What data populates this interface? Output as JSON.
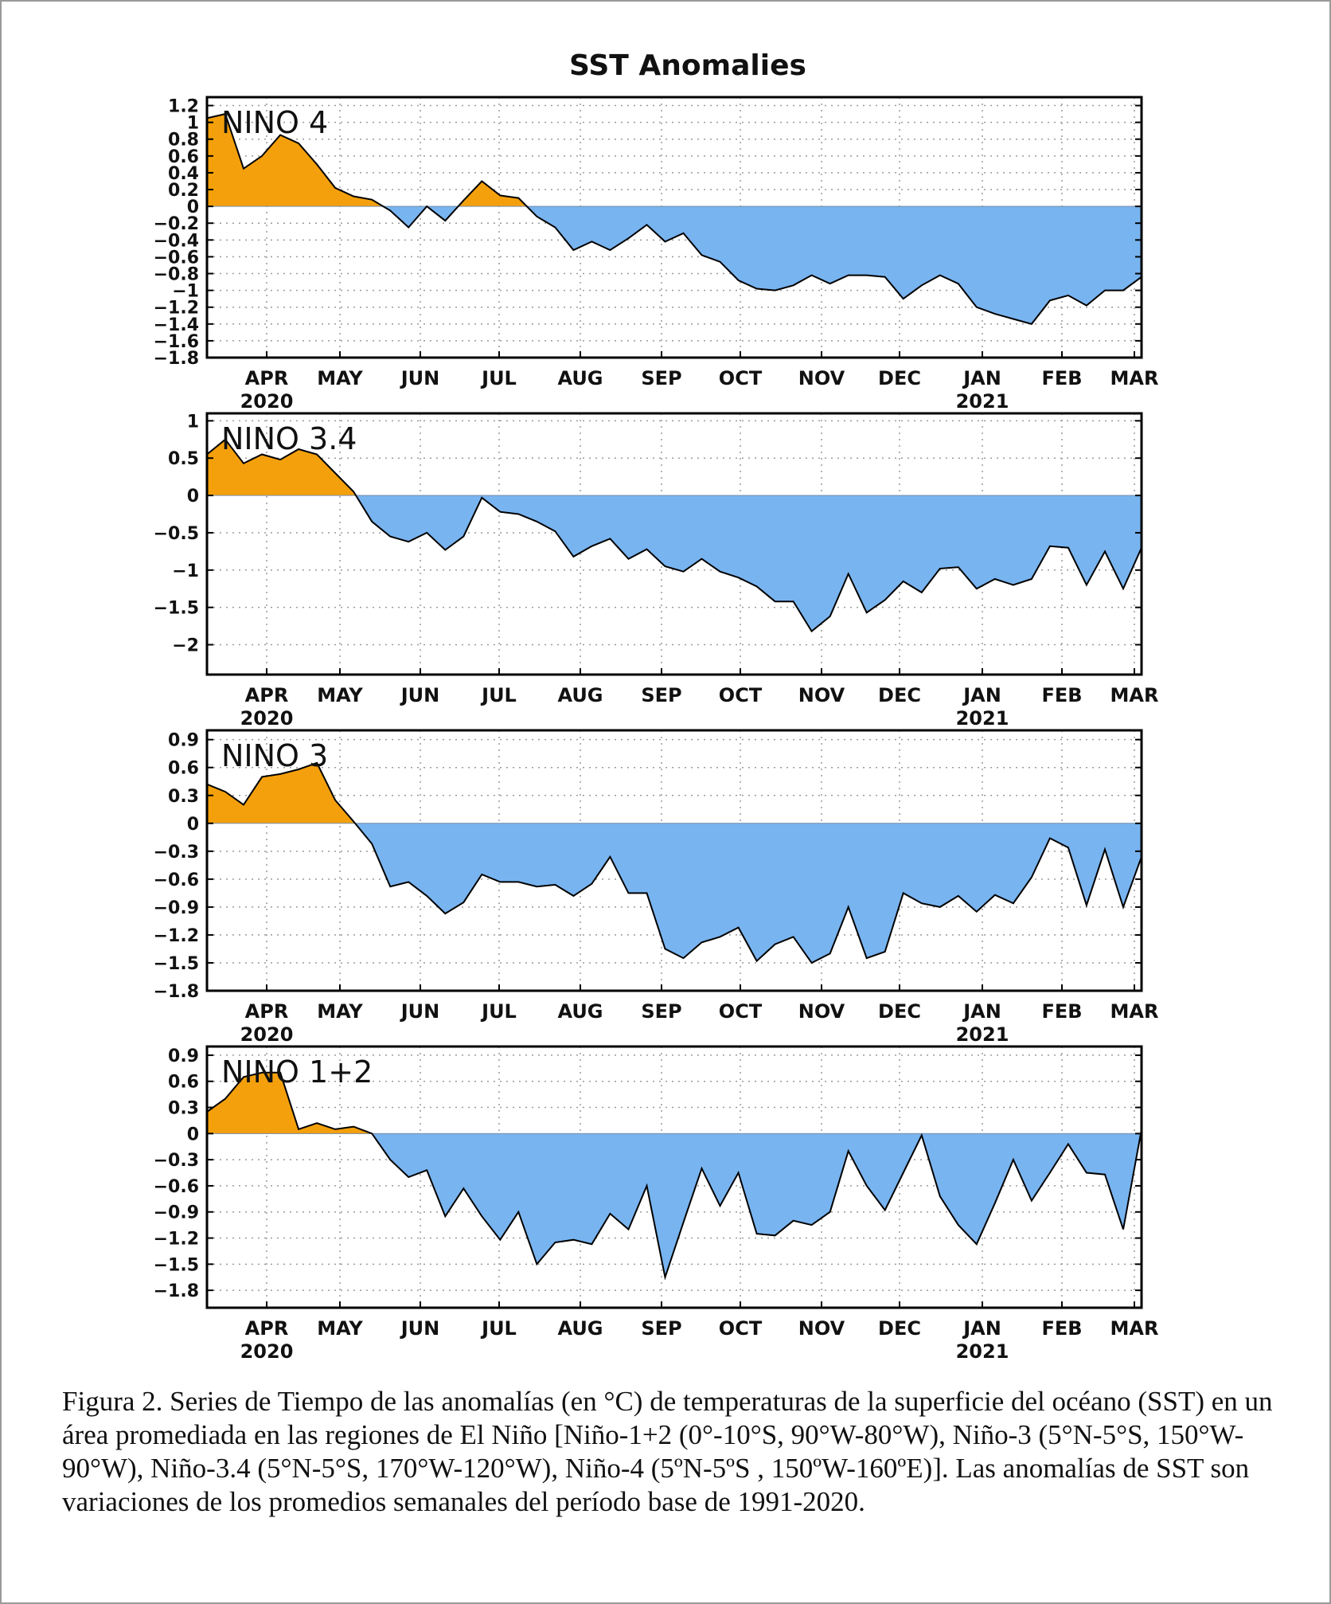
{
  "title": "SST Anomalies",
  "caption": "Figura 2. Series de Tiempo de las anomalías (en °C) de temperaturas de la superficie del océano (SST) en un área promediada en las regiones de El Niño [Niño-1+2 (0°-10°S, 90°W-80°W), Niño-3 (5°N-5°S, 150°W-90°W), Niño-3.4 (5°N-5°S, 170°W-120°W), Niño-4 (5ºN-5ºS , 150ºW-160ºE)]. Las anomalías de SST son variaciones de los promedios semanales del período base de 1991-2020.",
  "colors": {
    "positive": "#f4a00c",
    "negative": "#78b4f0",
    "line": "#000000"
  },
  "x_ticks": [
    "APR",
    "MAY",
    "JUN",
    "JUL",
    "AUG",
    "SEP",
    "OCT",
    "NOV",
    "DEC",
    "JAN",
    "FEB",
    "MAR"
  ],
  "year_labels": [
    {
      "tick": "APR",
      "label": "2020"
    },
    {
      "tick": "JAN",
      "label": "2021"
    }
  ],
  "chart_data": [
    {
      "type": "area",
      "region": "NINO 4",
      "x_range": [
        "2020-03-04",
        "2021-03-03"
      ],
      "x_unit": "week",
      "ylim": [
        -1.8,
        1.3
      ],
      "yticks": [
        -1.8,
        -1.6,
        -1.4,
        -1.2,
        -1,
        -0.8,
        -0.6,
        -0.4,
        -0.2,
        0,
        0.2,
        0.4,
        0.6,
        0.8,
        1,
        1.2
      ],
      "ytick_labels": [
        "−1.8",
        "−1.6",
        "−1.4",
        "−1.2",
        "−1",
        "−0.8",
        "−0.6",
        "−0.4",
        "−0.2",
        "0",
        "0.2",
        "0.4",
        "0.6",
        "0.8",
        "1",
        "1.2"
      ],
      "grid": true,
      "values": [
        1.05,
        1.1,
        0.45,
        0.6,
        0.85,
        0.75,
        0.5,
        0.22,
        0.12,
        0.08,
        -0.05,
        -0.25,
        0.0,
        -0.17,
        0.07,
        0.3,
        0.13,
        0.1,
        -0.12,
        -0.25,
        -0.52,
        -0.42,
        -0.52,
        -0.38,
        -0.22,
        -0.42,
        -0.32,
        -0.58,
        -0.66,
        -0.88,
        -0.98,
        -1.0,
        -0.94,
        -0.82,
        -0.92,
        -0.82,
        -0.82,
        -0.84,
        -1.1,
        -0.94,
        -0.82,
        -0.92,
        -1.2,
        -1.28,
        -1.34,
        -1.4,
        -1.12,
        -1.06,
        -1.18,
        -1.0,
        -1.0,
        -0.84
      ]
    },
    {
      "type": "area",
      "region": "NINO 3.4",
      "x_range": [
        "2020-03-04",
        "2021-03-03"
      ],
      "x_unit": "week",
      "ylim": [
        -2.4,
        1.1
      ],
      "yticks": [
        -2,
        -1.5,
        -1,
        -0.5,
        0,
        0.5,
        1
      ],
      "ytick_labels": [
        "−2",
        "−1.5",
        "−1",
        "−0.5",
        "0",
        "0.5",
        "1"
      ],
      "grid": true,
      "values": [
        0.55,
        0.75,
        0.43,
        0.55,
        0.48,
        0.62,
        0.55,
        0.3,
        0.05,
        -0.35,
        -0.55,
        -0.62,
        -0.5,
        -0.73,
        -0.55,
        -0.03,
        -0.22,
        -0.25,
        -0.35,
        -0.48,
        -0.82,
        -0.68,
        -0.58,
        -0.85,
        -0.72,
        -0.95,
        -1.02,
        -0.85,
        -1.02,
        -1.1,
        -1.22,
        -1.42,
        -1.42,
        -1.82,
        -1.62,
        -1.05,
        -1.57,
        -1.4,
        -1.15,
        -1.3,
        -0.98,
        -0.96,
        -1.25,
        -1.12,
        -1.2,
        -1.12,
        -0.68,
        -0.7,
        -1.2,
        -0.75,
        -1.25,
        -0.7
      ]
    },
    {
      "type": "area",
      "region": "NINO 3",
      "x_range": [
        "2020-03-04",
        "2021-03-03"
      ],
      "x_unit": "week",
      "ylim": [
        -1.8,
        1.0
      ],
      "yticks": [
        -1.8,
        -1.5,
        -1.2,
        -0.9,
        -0.6,
        -0.3,
        0,
        0.3,
        0.6,
        0.9
      ],
      "ytick_labels": [
        "−1.8",
        "−1.5",
        "−1.2",
        "−0.9",
        "−0.6",
        "−0.3",
        "0",
        "0.3",
        "0.6",
        "0.9"
      ],
      "grid": true,
      "values": [
        0.42,
        0.34,
        0.2,
        0.5,
        0.53,
        0.58,
        0.65,
        0.25,
        0.02,
        -0.22,
        -0.68,
        -0.63,
        -0.78,
        -0.97,
        -0.85,
        -0.55,
        -0.63,
        -0.63,
        -0.68,
        -0.66,
        -0.78,
        -0.65,
        -0.36,
        -0.75,
        -0.75,
        -1.35,
        -1.45,
        -1.28,
        -1.22,
        -1.12,
        -1.48,
        -1.3,
        -1.22,
        -1.5,
        -1.4,
        -0.9,
        -1.45,
        -1.38,
        -0.75,
        -0.86,
        -0.9,
        -0.78,
        -0.95,
        -0.77,
        -0.86,
        -0.58,
        -0.16,
        -0.26,
        -0.88,
        -0.28,
        -0.9,
        -0.36
      ]
    },
    {
      "type": "area",
      "region": "NINO 1+2",
      "x_range": [
        "2020-03-04",
        "2021-03-03"
      ],
      "x_unit": "week",
      "ylim": [
        -2.0,
        1.0
      ],
      "yticks": [
        -1.8,
        -1.5,
        -1.2,
        -0.9,
        -0.6,
        -0.3,
        0,
        0.3,
        0.6,
        0.9
      ],
      "ytick_labels": [
        "−1.8",
        "−1.5",
        "−1.2",
        "−0.9",
        "−0.6",
        "−0.3",
        "0",
        "0.3",
        "0.6",
        "0.9"
      ],
      "grid": true,
      "values": [
        0.25,
        0.4,
        0.65,
        0.7,
        0.7,
        0.05,
        0.12,
        0.05,
        0.08,
        0.0,
        -0.3,
        -0.5,
        -0.42,
        -0.95,
        -0.63,
        -0.95,
        -1.22,
        -0.9,
        -1.5,
        -1.25,
        -1.22,
        -1.27,
        -0.92,
        -1.1,
        -0.6,
        -1.65,
        -1.02,
        -0.4,
        -0.83,
        -0.45,
        -1.15,
        -1.17,
        -1.0,
        -1.05,
        -0.9,
        -0.2,
        -0.6,
        -0.88,
        -0.45,
        -0.02,
        -0.72,
        -1.05,
        -1.27,
        -0.8,
        -0.3,
        -0.77,
        -0.45,
        -0.12,
        -0.45,
        -0.47,
        -1.1,
        0.05
      ]
    }
  ]
}
